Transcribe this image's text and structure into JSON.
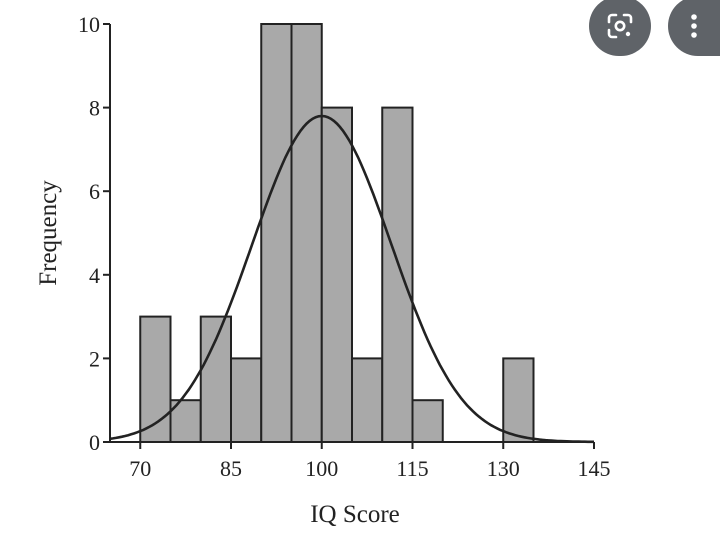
{
  "chart_data": {
    "type": "bar",
    "title": "",
    "xlabel": "IQ Score",
    "ylabel": "Frequency",
    "bin_width": 5,
    "bins": [
      {
        "start": 70,
        "end": 75,
        "count": 3
      },
      {
        "start": 75,
        "end": 80,
        "count": 1
      },
      {
        "start": 80,
        "end": 85,
        "count": 3
      },
      {
        "start": 85,
        "end": 90,
        "count": 2
      },
      {
        "start": 90,
        "end": 95,
        "count": 10
      },
      {
        "start": 95,
        "end": 100,
        "count": 10
      },
      {
        "start": 100,
        "end": 105,
        "count": 8
      },
      {
        "start": 105,
        "end": 110,
        "count": 2
      },
      {
        "start": 110,
        "end": 115,
        "count": 8
      },
      {
        "start": 115,
        "end": 120,
        "count": 1
      },
      {
        "start": 130,
        "end": 135,
        "count": 2
      }
    ],
    "xlim": [
      65,
      145
    ],
    "ylim": [
      0,
      10
    ],
    "xticks": [
      70,
      85,
      100,
      115,
      130,
      145
    ],
    "yticks": [
      0,
      2,
      4,
      6,
      8,
      10
    ],
    "curve": {
      "type": "normal",
      "mean": 100,
      "peak": 7.8,
      "sd": 11.5
    },
    "grid": false,
    "bar_color": "#a9a9a9",
    "edge_color": "#222222"
  },
  "overlay": {
    "lens_icon": "google-lens-icon",
    "more_icon": "more-vert-icon"
  }
}
